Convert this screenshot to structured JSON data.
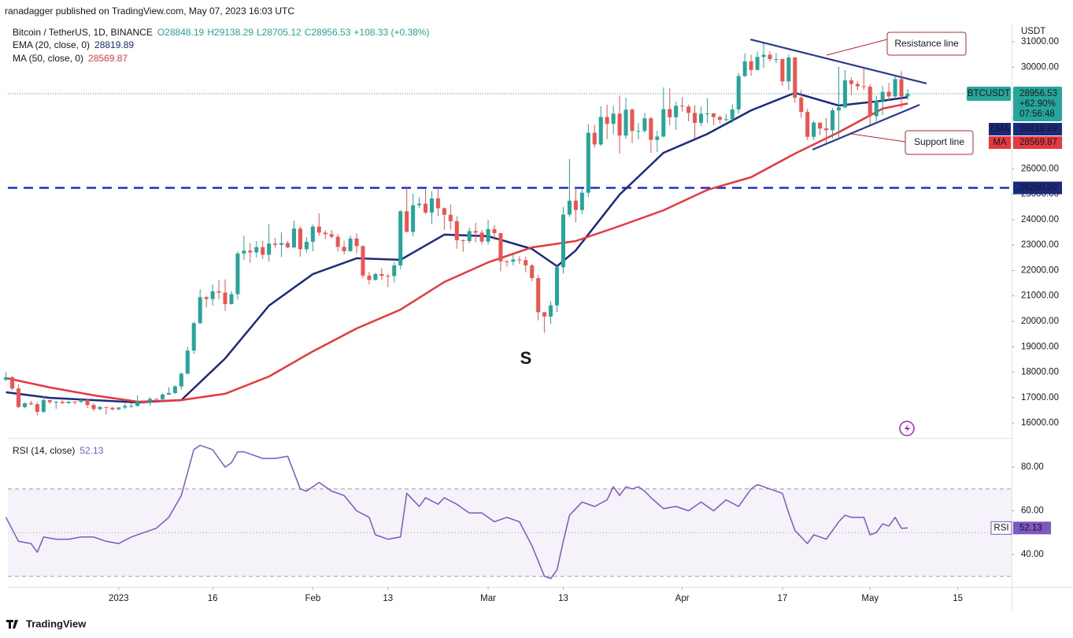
{
  "header": {
    "published": "ranadagger published on TradingView.com, May 07, 2023 16:03 UTC",
    "footer": "TradingView"
  },
  "chart_data": {
    "type": "candlestick",
    "title": "Bitcoin / TetherUS, 1D, BINANCE",
    "legend_ohlc": [
      "O28848.19",
      "H29138.29",
      "L28705.12",
      "C28956.53",
      "+108.33 (+0.38%)"
    ],
    "y_axis_label": "USDT",
    "up_color": "#26a69a",
    "down_color": "#ef5350",
    "x": [
      -18,
      -17,
      -16,
      -15,
      -14,
      -13,
      -12,
      -11,
      -10,
      -9,
      -8,
      -7,
      -6,
      -5,
      -4,
      -3,
      -2,
      -1,
      0,
      1,
      2,
      3,
      4,
      5,
      6,
      7,
      8,
      9,
      10,
      11,
      12,
      13,
      14,
      15,
      16,
      17,
      18,
      19,
      20,
      21,
      22,
      23,
      24,
      25,
      26,
      27,
      28,
      29,
      30,
      31,
      32,
      33,
      34,
      35,
      36,
      37,
      38,
      39,
      40,
      41,
      42,
      43,
      44,
      45,
      46,
      47,
      48,
      49,
      50,
      51,
      52,
      53,
      54,
      55,
      56,
      57,
      58,
      59,
      60,
      61,
      62,
      63,
      64,
      65,
      66,
      67,
      68,
      69,
      70,
      71,
      72,
      73,
      74,
      75,
      76,
      77,
      78,
      79,
      80,
      81,
      82,
      83,
      84,
      85,
      86,
      87,
      88,
      89,
      90,
      91,
      92,
      93,
      94,
      95,
      96,
      97,
      98,
      99,
      100,
      101,
      102,
      103,
      104,
      105,
      106,
      107,
      108,
      109,
      110,
      111,
      112,
      113,
      114,
      115,
      116,
      117,
      118,
      119,
      120,
      121,
      122,
      123,
      124,
      125,
      126
    ],
    "open": [
      17700,
      17800,
      17360,
      16630,
      16780,
      16740,
      16440,
      16900,
      16820,
      16830,
      16780,
      16840,
      16830,
      16920,
      16710,
      16550,
      16630,
      16600,
      16540,
      16610,
      16670,
      16670,
      16850,
      16830,
      16950,
      16940,
      17120,
      17180,
      17440,
      17940,
      18850,
      19930,
      20950,
      20880,
      21180,
      21130,
      20680,
      21070,
      22670,
      22780,
      22710,
      22920,
      22620,
      23060,
      23010,
      23080,
      22910,
      23650,
      22840,
      23130,
      23730,
      23490,
      23430,
      23330,
      22930,
      22760,
      23260,
      22960,
      21800,
      21630,
      21860,
      21790,
      21780,
      22200,
      24330,
      23520,
      24570,
      24630,
      24280,
      24840,
      24450,
      24190,
      23940,
      23190,
      23160,
      23550,
      23490,
      23140,
      23630,
      23470,
      22360,
      22350,
      22430,
      22410,
      22200,
      21700,
      20360,
      20190,
      20630,
      22130,
      24200,
      24750,
      24380,
      25060,
      27420,
      26960,
      28040,
      27770,
      28170,
      27310,
      28330,
      27490,
      27490,
      27990,
      27140,
      27270,
      28350,
      28030,
      28480,
      28450,
      28200,
      27810,
      28170,
      28180,
      28040,
      27930,
      27950,
      28340,
      29650,
      30230,
      29890,
      30400,
      30490,
      30320,
      30320,
      29440,
      30380,
      28800,
      28240,
      27260,
      27820,
      27590,
      27520,
      28300,
      28420,
      29480,
      29340,
      29250,
      29230,
      28070,
      28680,
      29030,
      28850,
      29530,
      28848.19
    ],
    "high": [
      18000,
      17850,
      17520,
      16800,
      16870,
      16820,
      17060,
      16910,
      16870,
      16950,
      16860,
      16860,
      16940,
      16970,
      16780,
      16660,
      16640,
      16640,
      16630,
      16760,
      16790,
      17090,
      16870,
      17020,
      16960,
      17180,
      17400,
      17490,
      18000,
      19000,
      19990,
      21260,
      21000,
      21450,
      21610,
      21650,
      21190,
      22750,
      23370,
      23080,
      23160,
      23170,
      23820,
      23280,
      23500,
      23160,
      23960,
      23740,
      23310,
      23810,
      24250,
      23590,
      23590,
      23440,
      23170,
      23370,
      23460,
      22990,
      21940,
      21910,
      22090,
      21880,
      22330,
      24380,
      25250,
      25020,
      24880,
      25190,
      25120,
      25250,
      24480,
      24600,
      24130,
      23220,
      23690,
      23880,
      23600,
      24000,
      23780,
      23480,
      22410,
      22620,
      22560,
      22540,
      22270,
      21820,
      20370,
      20790,
      22190,
      24500,
      26390,
      25250,
      25210,
      27760,
      27730,
      28460,
      28520,
      28480,
      28880,
      28800,
      28380,
      27800,
      28200,
      28050,
      27500,
      29200,
      29170,
      28650,
      28820,
      28530,
      28500,
      28450,
      28780,
      28200,
      28100,
      28160,
      28530,
      29770,
      30550,
      30490,
      30620,
      31000,
      30620,
      30550,
      30340,
      30490,
      30410,
      29100,
      28370,
      27880,
      27820,
      28000,
      28400,
      30020,
      29890,
      29600,
      29450,
      29950,
      29330,
      28880,
      29270,
      29380,
      29680,
      29840,
      29138.29
    ],
    "low": [
      17650,
      17280,
      16580,
      16580,
      16700,
      16300,
      16400,
      16750,
      16560,
      16760,
      16770,
      16730,
      16790,
      16590,
      16460,
      16490,
      16330,
      16490,
      16500,
      16550,
      16600,
      16650,
      16750,
      16680,
      16910,
      16910,
      17100,
      17140,
      17320,
      17920,
      18720,
      19890,
      20550,
      20620,
      20860,
      20410,
      20660,
      20860,
      22420,
      22300,
      22510,
      22450,
      22350,
      22900,
      22530,
      22880,
      22870,
      22550,
      22710,
      22760,
      23370,
      23230,
      23250,
      22750,
      22630,
      22740,
      22670,
      21690,
      21450,
      21600,
      21630,
      21350,
      21530,
      22050,
      23500,
      23340,
      24460,
      24230,
      23840,
      24150,
      23600,
      23610,
      22860,
      22730,
      23070,
      23110,
      23020,
      23020,
      23200,
      21970,
      22160,
      22200,
      22260,
      21930,
      21580,
      20040,
      19550,
      19900,
      20370,
      21880,
      24120,
      23900,
      24220,
      24890,
      26830,
      26900,
      27170,
      27360,
      26600,
      27180,
      27000,
      27160,
      27420,
      26630,
      26660,
      27240,
      27720,
      27530,
      28250,
      27870,
      27200,
      27680,
      27810,
      27720,
      27790,
      27870,
      27800,
      28170,
      29610,
      29660,
      29870,
      29960,
      30230,
      30160,
      29270,
      29100,
      28600,
      28010,
      27130,
      27130,
      27330,
      26970,
      27200,
      27240,
      28380,
      28890,
      29100,
      29100,
      27660,
      27870,
      28110,
      28700,
      28800,
      28390,
      28705.12
    ],
    "close": [
      17800,
      17360,
      16630,
      16780,
      16740,
      16440,
      16900,
      16820,
      16830,
      16780,
      16840,
      16830,
      16920,
      16710,
      16550,
      16630,
      16600,
      16540,
      16610,
      16670,
      16670,
      16850,
      16830,
      16950,
      16940,
      17120,
      17180,
      17440,
      17940,
      18850,
      19930,
      20950,
      20880,
      21180,
      21130,
      20680,
      21070,
      22670,
      22780,
      22710,
      22920,
      22620,
      23060,
      23010,
      23080,
      22910,
      23650,
      22840,
      23130,
      23730,
      23490,
      23430,
      23330,
      22930,
      22760,
      23260,
      22960,
      21800,
      21630,
      21860,
      21790,
      21780,
      22200,
      24330,
      23520,
      24570,
      24630,
      24280,
      24840,
      24450,
      24190,
      23940,
      23190,
      23160,
      23550,
      23490,
      23140,
      23630,
      23470,
      22360,
      22350,
      22430,
      22410,
      22200,
      21700,
      20360,
      20190,
      20630,
      22130,
      24200,
      24750,
      24380,
      25060,
      27420,
      26960,
      28040,
      27770,
      28170,
      27310,
      28330,
      27490,
      27490,
      27990,
      27140,
      27270,
      28350,
      28030,
      28480,
      28450,
      28200,
      27810,
      28170,
      28180,
      28040,
      27930,
      27950,
      28340,
      29650,
      30230,
      29890,
      30400,
      30490,
      30320,
      30320,
      29440,
      30380,
      28800,
      28240,
      27260,
      27820,
      27590,
      27520,
      28300,
      28420,
      29480,
      29340,
      29250,
      29230,
      28070,
      28680,
      29030,
      28850,
      29530,
      28848.19,
      28956.53
    ],
    "xlim": [
      -17.7,
      142.6
    ],
    "xticks": [
      {
        "value": 0,
        "label": "2023"
      },
      {
        "value": 15,
        "label": "16"
      },
      {
        "value": 31,
        "label": "Feb"
      },
      {
        "value": 43,
        "label": "13"
      },
      {
        "value": 59,
        "label": "Mar"
      },
      {
        "value": 71,
        "label": "13"
      },
      {
        "value": 90,
        "label": "Apr"
      },
      {
        "value": 106,
        "label": "17"
      },
      {
        "value": 120,
        "label": "May"
      },
      {
        "value": 134,
        "label": "15"
      }
    ],
    "ylim": [
      15413,
      31713
    ],
    "yticks": [
      {
        "value": 16000,
        "label": "16000.00"
      },
      {
        "value": 17000,
        "label": "17000.00"
      },
      {
        "value": 18000,
        "label": "18000.00"
      },
      {
        "value": 19000,
        "label": "19000.00"
      },
      {
        "value": 20000,
        "label": "20000.00"
      },
      {
        "value": 21000,
        "label": "21000.00"
      },
      {
        "value": 22000,
        "label": "22000.00"
      },
      {
        "value": 23000,
        "label": "23000.00"
      },
      {
        "value": 24000,
        "label": "24000.00"
      },
      {
        "value": 25000,
        "label": "25000.00"
      },
      {
        "value": 26000,
        "label": "26000.00"
      },
      {
        "value": 27000,
        "label": "27000.00"
      },
      {
        "value": 28000,
        "label": "28000.00"
      },
      {
        "value": 29000,
        "label": "29000.00"
      },
      {
        "value": 30000,
        "label": "30000.00"
      },
      {
        "value": 31000,
        "label": "31000.00"
      }
    ],
    "grid": false,
    "lines": [
      {
        "name": "EMA (20, close, 0)",
        "short_name": "EMA",
        "color": "#1c2a7e",
        "x": [
          -18,
          -11,
          -4,
          3,
          10,
          17,
          24,
          31,
          38,
          45,
          52,
          59,
          66,
          70,
          73,
          80,
          87,
          94,
          101,
          108,
          115,
          122,
          126
        ],
        "values": [
          17210,
          16990,
          16900,
          16810,
          16900,
          18540,
          20620,
          21860,
          22480,
          22420,
          23410,
          23350,
          22850,
          22170,
          22790,
          24990,
          26630,
          27370,
          28300,
          28990,
          28490,
          28680,
          28819.89
        ]
      },
      {
        "name": "MA (50, close, 0)",
        "short_name": "MA",
        "color": "#e53940",
        "x": [
          -18,
          -11,
          -4,
          3,
          10,
          17,
          24,
          31,
          38,
          45,
          52,
          59,
          66,
          73,
          80,
          87,
          94,
          101,
          108,
          115,
          122,
          126
        ],
        "values": [
          17770,
          17400,
          17090,
          16840,
          16900,
          17150,
          17830,
          18820,
          19720,
          20460,
          21550,
          22320,
          22910,
          23160,
          23750,
          24370,
          25170,
          25670,
          26600,
          27440,
          28370,
          28569.87
        ]
      }
    ],
    "price_label": {
      "symbol": "BTCUSDT",
      "change": "+62.90%",
      "countdown": "07:56:48"
    },
    "hline": {
      "value": 25250,
      "label": "25250.00",
      "color": "#1c2fd0"
    },
    "trendlines": [
      {
        "name": "Resistance line",
        "x": [
          100.9,
          129
        ],
        "values": [
          31090,
          29360
        ]
      },
      {
        "name": "Support line",
        "x": [
          110.8,
          127.9
        ],
        "values": [
          26755,
          28520
        ]
      }
    ],
    "annotation": "S",
    "rsi": {
      "type": "line",
      "name": "RSI (14, close)",
      "short_name": "RSI",
      "color": "#7e57c2",
      "x": [
        -18,
        -16,
        -14,
        -13,
        -12,
        -10,
        -8,
        -6,
        -4,
        -2,
        0,
        2,
        4,
        6,
        8,
        10,
        12,
        13,
        14,
        15,
        16,
        17,
        18,
        19,
        20,
        21,
        23,
        25,
        27,
        29,
        30,
        32,
        34,
        36,
        38,
        40,
        41,
        43,
        45,
        46,
        48,
        49,
        51,
        52,
        54,
        56,
        58,
        60,
        62,
        64,
        66,
        68,
        69,
        70,
        71,
        72,
        73,
        74,
        76,
        78,
        79,
        80,
        81,
        82,
        83,
        84,
        85,
        87,
        89,
        91,
        93,
        95,
        97,
        99,
        101,
        102,
        104,
        106,
        107,
        108,
        110,
        111,
        113,
        115,
        116,
        117,
        119,
        120,
        121,
        122,
        123,
        124,
        125,
        126
      ],
      "values": [
        57,
        46,
        45,
        41,
        48,
        47,
        47,
        48,
        48,
        46,
        45,
        48,
        50,
        52,
        57,
        67,
        88,
        90,
        89,
        88,
        84,
        80,
        82,
        87,
        87,
        86,
        84,
        84,
        85,
        70,
        69,
        73,
        69,
        67,
        60,
        57,
        49,
        47,
        48,
        68,
        62,
        66,
        63,
        66,
        63,
        59,
        59,
        55,
        57,
        55,
        44,
        30,
        29,
        33,
        46,
        58,
        61,
        64,
        62,
        65,
        71,
        67,
        71,
        70,
        71,
        69,
        66,
        61,
        62,
        60,
        64,
        60,
        65,
        62,
        70,
        72,
        70,
        68,
        59,
        51,
        45,
        49,
        47,
        55,
        58,
        57,
        57,
        49,
        50,
        54,
        53,
        57,
        52,
        52.13
      ],
      "ylim": [
        25.2,
        93
      ],
      "yticks": [
        {
          "value": 40,
          "label": "40.00"
        },
        {
          "value": 60,
          "label": "60.00"
        },
        {
          "value": 80,
          "label": "80.00"
        }
      ],
      "levels": [
        30,
        50,
        70
      ]
    }
  }
}
